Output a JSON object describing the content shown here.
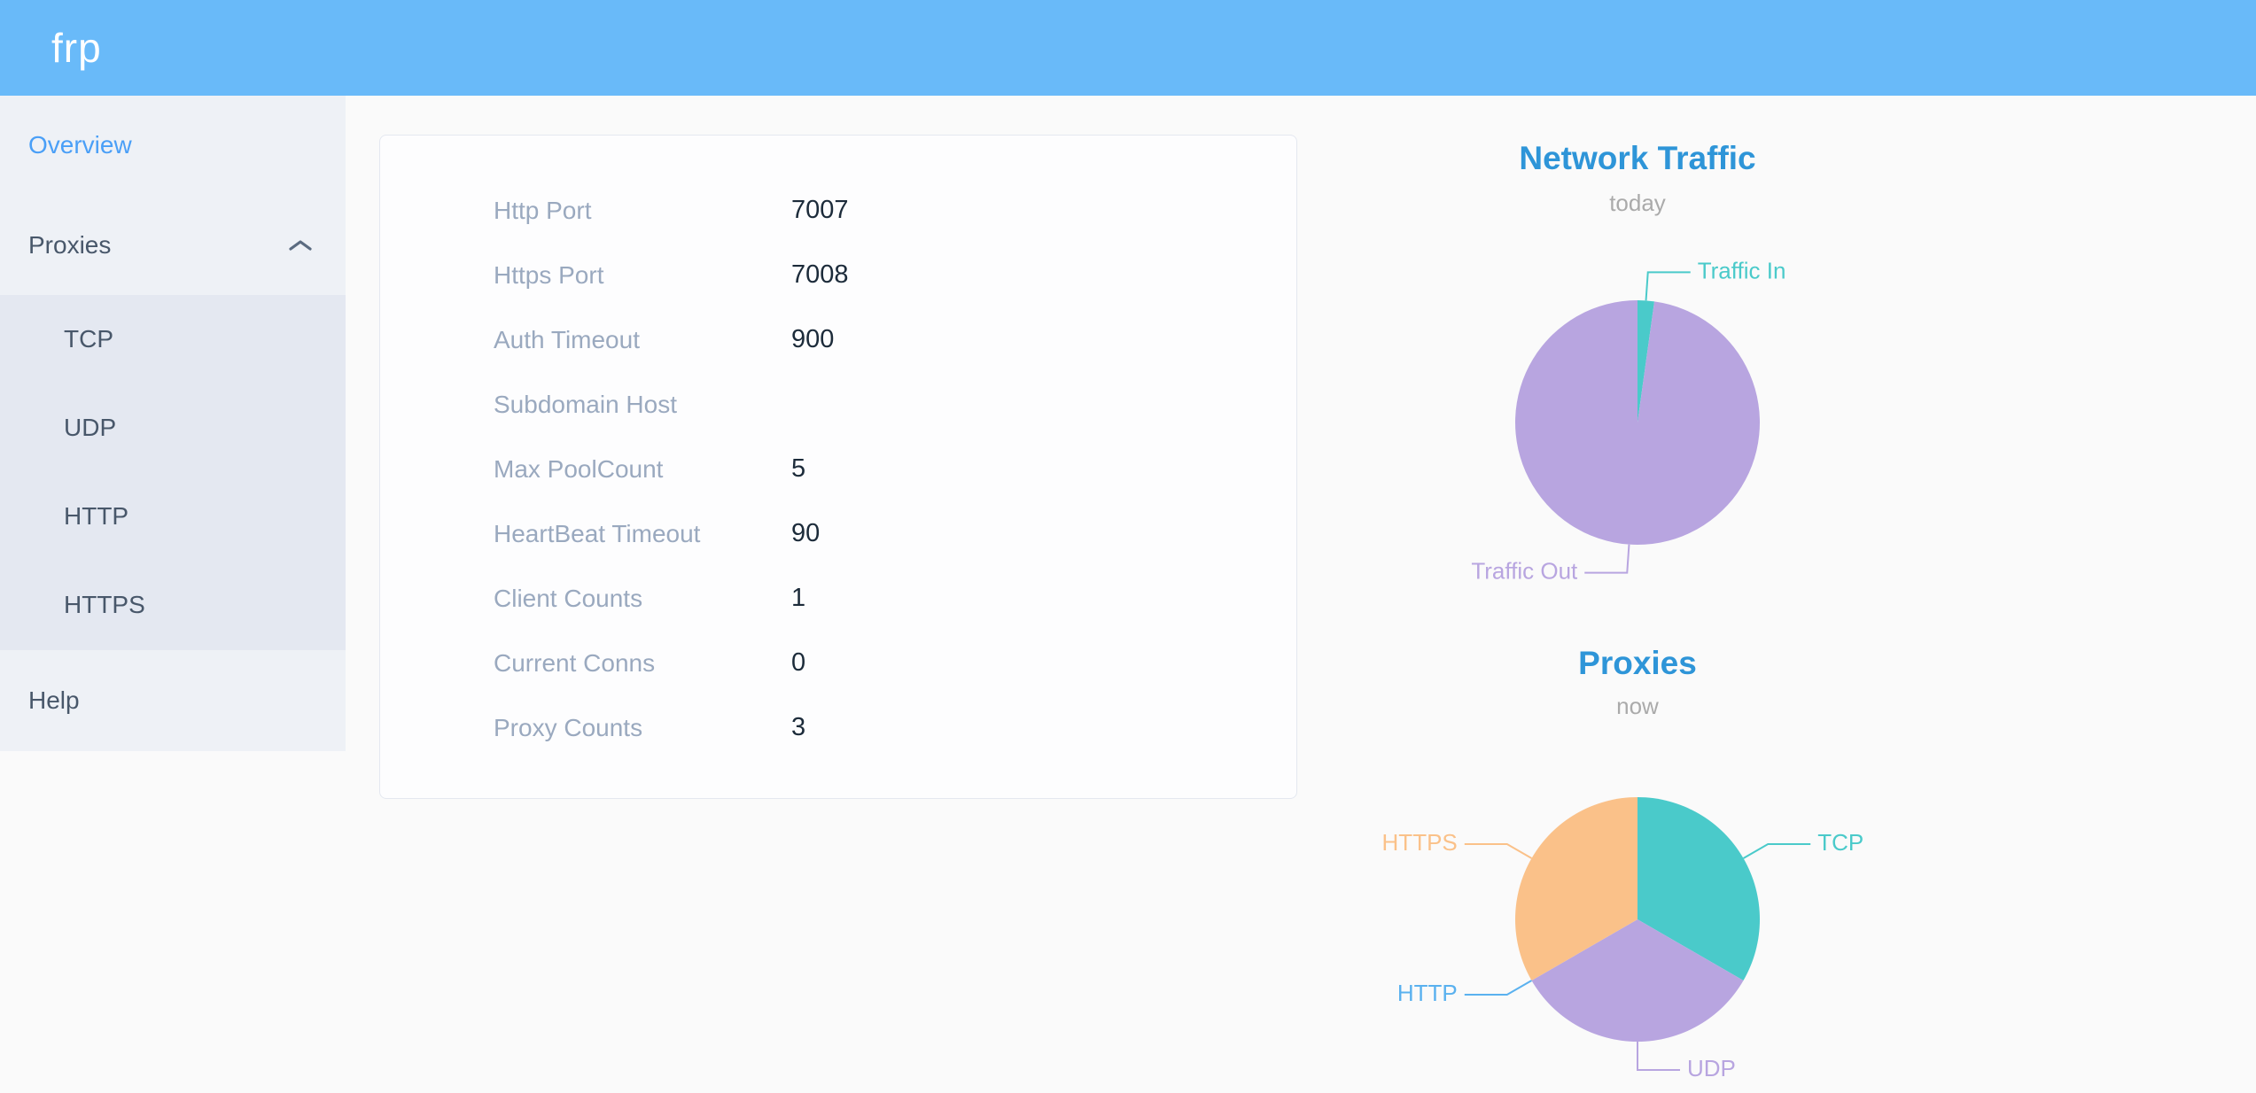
{
  "header": {
    "logo": "frp"
  },
  "sidebar": {
    "overview": "Overview",
    "proxies": "Proxies",
    "proxies_children": [
      "TCP",
      "UDP",
      "HTTP",
      "HTTPS"
    ],
    "help": "Help"
  },
  "overview_table": {
    "rows": [
      {
        "label": "Http Port",
        "value": "7007"
      },
      {
        "label": "Https Port",
        "value": "7008"
      },
      {
        "label": "Auth Timeout",
        "value": "900"
      },
      {
        "label": "Subdomain Host",
        "value": ""
      },
      {
        "label": "Max PoolCount",
        "value": "5"
      },
      {
        "label": "HeartBeat Timeout",
        "value": "90"
      },
      {
        "label": "Client Counts",
        "value": "1"
      },
      {
        "label": "Current Conns",
        "value": "0"
      },
      {
        "label": "Proxy Counts",
        "value": "3"
      }
    ]
  },
  "chart_data": [
    {
      "type": "pie",
      "title": "Network Traffic",
      "subtitle": "today",
      "label_position": "outside",
      "legend": "none",
      "slices": [
        {
          "label": "Traffic In",
          "value": 2.2,
          "color": "#4acaca"
        },
        {
          "label": "Traffic Out",
          "value": 97.8,
          "color": "#b8a5e0"
        }
      ],
      "note": "values are proportions (%) estimated from slice angles"
    },
    {
      "type": "pie",
      "title": "Proxies",
      "subtitle": "now",
      "label_position": "outside",
      "legend": "none",
      "slices": [
        {
          "label": "TCP",
          "value": 1,
          "color": "#4acaca"
        },
        {
          "label": "UDP",
          "value": 1,
          "color": "#b8a5e0"
        },
        {
          "label": "HTTP",
          "value": 0,
          "color": "#5ab1ef"
        },
        {
          "label": "HTTPS",
          "value": 1,
          "color": "#fac189"
        }
      ]
    }
  ],
  "theme": {
    "header_bg": "#69baf9",
    "active_menu": "#4a9ff7",
    "menu_text": "#48576a",
    "sidebar_bg": "#eef1f6",
    "submenu_bg": "#e4e8f1",
    "chart_title": "#2e95d8",
    "chart_subtitle": "#aaaaaa",
    "table_label": "#9aa9bf",
    "table_value": "#1c2b3a",
    "pie_teal": "#4acaca",
    "pie_purple": "#b8a5e0",
    "pie_blue": "#5ab1ef",
    "pie_orange": "#fac189"
  }
}
